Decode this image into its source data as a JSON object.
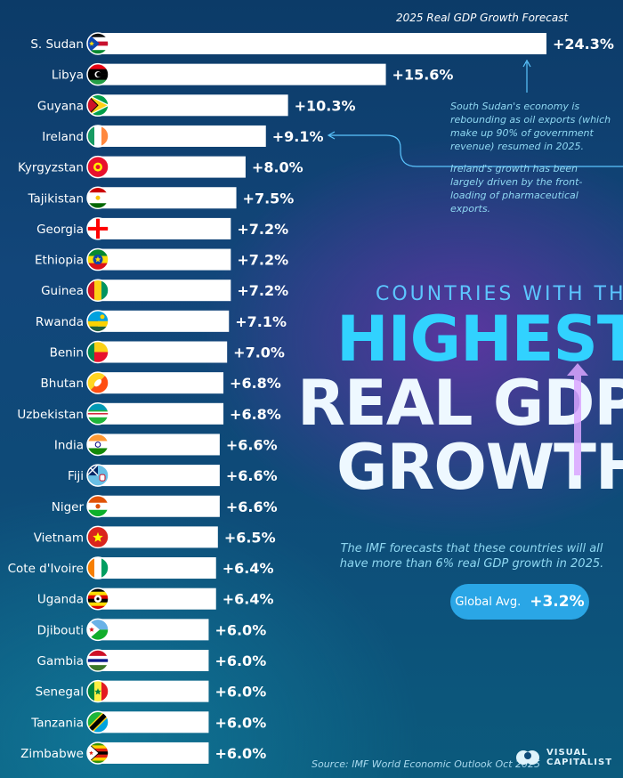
{
  "chart_data": {
    "type": "bar",
    "orientation": "horizontal",
    "title": "2025 Real GDP Growth Forecast",
    "categories": [
      "S. Sudan",
      "Libya",
      "Guyana",
      "Ireland",
      "Kyrgyzstan",
      "Tajikistan",
      "Georgia",
      "Ethiopia",
      "Guinea",
      "Rwanda",
      "Benin",
      "Bhutan",
      "Uzbekistan",
      "India",
      "Fiji",
      "Niger",
      "Vietnam",
      "Cote d'Ivoire",
      "Uganda",
      "Djibouti",
      "Gambia",
      "Senegal",
      "Tanzania",
      "Zimbabwe"
    ],
    "values": [
      24.3,
      15.6,
      10.3,
      9.1,
      8.0,
      7.5,
      7.2,
      7.2,
      7.2,
      7.1,
      7.0,
      6.8,
      6.8,
      6.6,
      6.6,
      6.6,
      6.5,
      6.4,
      6.4,
      6.0,
      6.0,
      6.0,
      6.0,
      6.0
    ],
    "value_labels": [
      "+24.3%",
      "+15.6%",
      "+10.3%",
      "+9.1%",
      "+8.0%",
      "+7.5%",
      "+7.2%",
      "+7.2%",
      "+7.2%",
      "+7.1%",
      "+7.0%",
      "+6.8%",
      "+6.8%",
      "+6.6%",
      "+6.6%",
      "+6.6%",
      "+6.5%",
      "+6.4%",
      "+6.4%",
      "+6.0%",
      "+6.0%",
      "+6.0%",
      "+6.0%",
      "+6.0%"
    ],
    "xlim": [
      0,
      24.3
    ],
    "grid": false,
    "bar_color": "#ffffff",
    "flags": [
      "S. Sudan",
      "Libya",
      "Guyana",
      "Ireland",
      "Kyrgyzstan",
      "Tajikistan",
      "Georgia",
      "Ethiopia",
      "Guinea",
      "Rwanda",
      "Benin",
      "Bhutan",
      "Uzbekistan",
      "India",
      "Fiji",
      "Niger",
      "Vietnam",
      "Cote d'Ivoire",
      "Uganda",
      "Djibouti",
      "Gambia",
      "Senegal",
      "Tanzania",
      "Zimbabwe"
    ],
    "annotations": [
      {
        "target": "S. Sudan",
        "text": "South Sudan's economy is rebounding as oil exports (which make up 90% of government revenue) resumed in 2025."
      },
      {
        "target": "Ireland",
        "text": "Ireland's growth has been largely driven by the front-loading of pharmaceutical exports."
      }
    ]
  },
  "headline": {
    "sub": "COUNTRIES WITH THE",
    "line1": "HIGHEST",
    "line2": "REAL GDP",
    "line3": "GROWTH"
  },
  "imf_note": "The IMF forecasts that these countries will all have more than 6% real GDP growth in 2025.",
  "global_avg": {
    "label": "Global Avg.",
    "value": "+3.2%"
  },
  "source": "Source: IMF World Economic Outlook Oct 2025",
  "brand": {
    "line1": "VISUAL",
    "line2": "CAPITALIST"
  },
  "colors": {
    "accent_cyan": "#31d2ff",
    "annotation": "#8fd8f2",
    "badge": "#2aa6e6"
  }
}
